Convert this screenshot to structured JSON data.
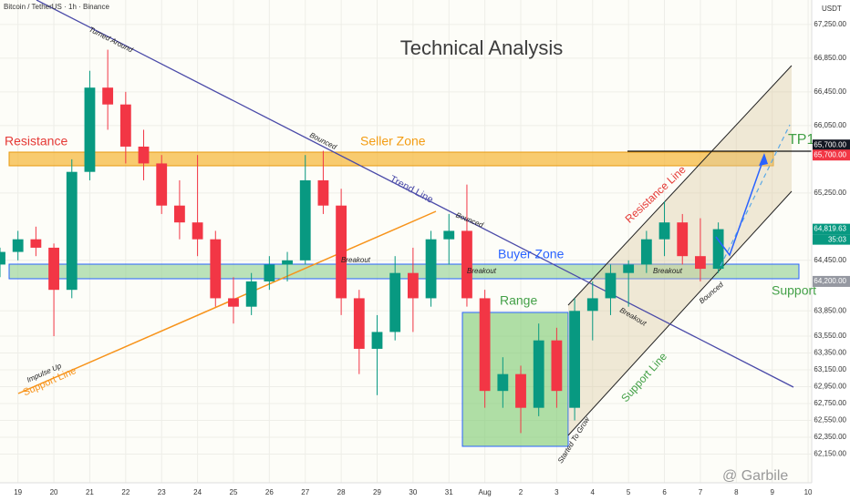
{
  "chart_data": {
    "type": "candlestick",
    "title": "Technical Analysis",
    "source": "Bitcoin / TetherUS · 1h · Binance",
    "currency": "USDT",
    "watermark": "@ Garbile",
    "countdown": "35:03",
    "up_color": "#089981",
    "down_color": "#f23645",
    "x": [
      -0.5,
      0,
      0.5,
      1,
      1.5,
      2,
      2.5,
      3,
      3.5,
      4,
      4.5,
      5,
      5.5,
      6,
      6.5,
      7,
      7.5,
      8,
      8.5,
      9,
      9.5,
      10,
      10.5,
      11,
      11.5,
      12,
      12.5,
      13,
      13.5,
      14,
      14.5,
      15,
      15.5,
      16,
      16.5,
      17,
      17.5,
      18,
      18.5,
      19,
      19.5
    ],
    "open": [
      64400,
      64550,
      64700,
      64600,
      64100,
      65500,
      66500,
      66300,
      65800,
      65600,
      65100,
      64900,
      64700,
      64000,
      63900,
      64200,
      64400,
      64450,
      65400,
      65100,
      64000,
      63400,
      63600,
      64300,
      64000,
      64700,
      64800,
      64000,
      62900,
      63100,
      62700,
      63500,
      62700,
      63850,
      64000,
      64300,
      64400,
      64700,
      64900,
      64500,
      64350
    ],
    "high": [
      64600,
      64800,
      64850,
      64650,
      65650,
      66700,
      66950,
      66450,
      66000,
      65700,
      65400,
      65700,
      64800,
      64250,
      64300,
      64500,
      64550,
      65700,
      65750,
      65300,
      64100,
      63800,
      64500,
      64600,
      64800,
      65000,
      65350,
      64100,
      63300,
      63200,
      63700,
      63650,
      64000,
      64200,
      64400,
      64450,
      64800,
      65150,
      65000,
      64950,
      64900
    ],
    "low": [
      64250,
      64450,
      64500,
      63550,
      64000,
      65400,
      66000,
      65600,
      65400,
      65000,
      64700,
      64500,
      63900,
      63700,
      63800,
      64100,
      64200,
      64400,
      65000,
      63800,
      63100,
      62850,
      63500,
      63600,
      63900,
      64400,
      63900,
      62700,
      62700,
      62400,
      62600,
      62700,
      62550,
      63500,
      63800,
      63900,
      64300,
      64500,
      64400,
      64200,
      64300
    ],
    "close": [
      64550,
      64700,
      64600,
      64100,
      65500,
      66500,
      66300,
      65800,
      65600,
      65100,
      64900,
      64700,
      64000,
      63900,
      64200,
      64400,
      64450,
      65400,
      65100,
      64000,
      63400,
      63600,
      64300,
      64000,
      64700,
      64800,
      64000,
      62900,
      63100,
      62700,
      63500,
      62900,
      63850,
      64000,
      64300,
      64400,
      64700,
      64900,
      64500,
      64350,
      64820
    ],
    "xlim": [
      -0.5,
      22.1
    ],
    "xticks": [
      {
        "value": 0,
        "label": "19"
      },
      {
        "value": 1,
        "label": "20"
      },
      {
        "value": 2,
        "label": "21"
      },
      {
        "value": 3,
        "label": "22"
      },
      {
        "value": 4,
        "label": "23"
      },
      {
        "value": 5,
        "label": "24"
      },
      {
        "value": 6,
        "label": "25"
      },
      {
        "value": 7,
        "label": "26"
      },
      {
        "value": 8,
        "label": "27"
      },
      {
        "value": 9,
        "label": "28"
      },
      {
        "value": 10,
        "label": "29"
      },
      {
        "value": 11,
        "label": "30"
      },
      {
        "value": 12,
        "label": "31"
      },
      {
        "value": 13,
        "label": "Aug"
      },
      {
        "value": 14,
        "label": "2"
      },
      {
        "value": 15,
        "label": "3"
      },
      {
        "value": 16,
        "label": "4"
      },
      {
        "value": 17,
        "label": "5"
      },
      {
        "value": 18,
        "label": "6"
      },
      {
        "value": 19,
        "label": "7"
      },
      {
        "value": 20,
        "label": "8"
      },
      {
        "value": 21,
        "label": "9"
      },
      {
        "value": 22,
        "label": "10"
      }
    ],
    "ylim": [
      61810,
      67540
    ],
    "yticks": [
      {
        "value": 67250,
        "label": "67,250.00"
      },
      {
        "value": 66850,
        "label": "66,850.00"
      },
      {
        "value": 66450,
        "label": "66,450.00"
      },
      {
        "value": 66050,
        "label": "66,050.00"
      },
      {
        "value": 65250,
        "label": "65,250.00"
      },
      {
        "value": 64450,
        "label": "64,450.00"
      },
      {
        "value": 63850,
        "label": "63,850.00"
      },
      {
        "value": 63550,
        "label": "63,550.00"
      },
      {
        "value": 63350,
        "label": "63,350.00"
      },
      {
        "value": 63150,
        "label": "63,150.00"
      },
      {
        "value": 62950,
        "label": "62,950.00"
      },
      {
        "value": 62750,
        "label": "62,750.00"
      },
      {
        "value": 62550,
        "label": "62,550.00"
      },
      {
        "value": 62350,
        "label": "62,350.00"
      },
      {
        "value": 62150,
        "label": "62,150.00"
      }
    ],
    "price_labels": [
      {
        "value": 65700,
        "label": "65,700.00",
        "color": "#131722"
      },
      {
        "value": 65700,
        "label": "65,700.00",
        "color": "#f23645"
      },
      {
        "value": 64819.63,
        "label": "64,819.63",
        "color": "#089981"
      },
      {
        "value": 64200,
        "label": "64,200.00",
        "color": "#9598a1"
      }
    ],
    "annotations": [
      "Resistance",
      "Seller Zone",
      "Buyer Zone",
      "Range",
      "Support",
      "TP1",
      "Turned Around",
      "Bounced",
      "Bounced",
      "Bounced",
      "Trend Line",
      "Breakout",
      "Breakout",
      "Breakout",
      "Breakout",
      "Support Line",
      "Impulse Up",
      "Resistance Line",
      "Support Line",
      "Started To Grow"
    ]
  }
}
